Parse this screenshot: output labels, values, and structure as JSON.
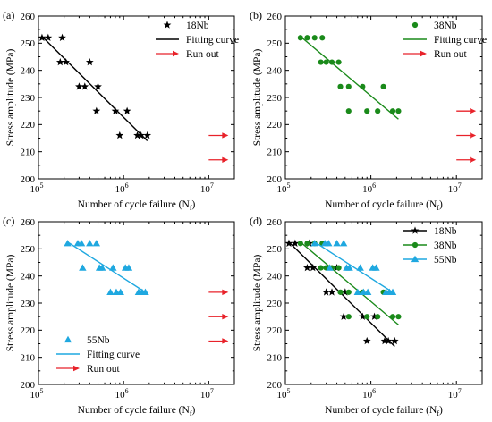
{
  "colors": {
    "18Nb": "#000000",
    "38Nb": "#1a8a1a",
    "55Nb": "#1fa8e0",
    "runout": "#e8222a"
  },
  "chart_data": [
    {
      "panel": "(a)",
      "type": "scatter",
      "xscale": "log",
      "xlim": [
        100000,
        20000000
      ],
      "ylim": [
        200,
        260
      ],
      "xlabel": "Number of cycle failure (N_f)",
      "ylabel": "Stress amplitude (MPa)",
      "yticks": [
        200,
        210,
        220,
        230,
        240,
        250,
        260
      ],
      "legend_position": "top-right",
      "legend": [
        "18Nb",
        "Fitting curve",
        "Run out"
      ],
      "series": [
        {
          "name": "18Nb",
          "marker": "star",
          "color": "#000000",
          "points": [
            [
              110000,
              252
            ],
            [
              130000,
              252
            ],
            [
              190000,
              252
            ],
            [
              180000,
              243
            ],
            [
              210000,
              243
            ],
            [
              400000,
              243
            ],
            [
              300000,
              234
            ],
            [
              350000,
              234
            ],
            [
              500000,
              234
            ],
            [
              480000,
              225
            ],
            [
              800000,
              225
            ],
            [
              1100000,
              225
            ],
            [
              900000,
              216
            ],
            [
              1450000,
              216
            ],
            [
              1600000,
              216
            ],
            [
              1900000,
              216
            ]
          ],
          "fit": [
            [
              110000,
              252.5
            ],
            [
              1900000,
              214
            ]
          ]
        }
      ],
      "runout": [
        {
          "x": 10000000,
          "y": 216
        },
        {
          "x": 10000000,
          "y": 207
        }
      ]
    },
    {
      "panel": "(b)",
      "type": "scatter",
      "xscale": "log",
      "xlim": [
        100000,
        20000000
      ],
      "ylim": [
        200,
        260
      ],
      "xlabel": "Number of cycle failure (N_f)",
      "ylabel": "Stress amplitude (MPa)",
      "yticks": [
        200,
        210,
        220,
        230,
        240,
        250,
        260
      ],
      "legend_position": "top-right",
      "legend": [
        "38Nb",
        "Fitting curve",
        "Run out"
      ],
      "series": [
        {
          "name": "38Nb",
          "marker": "circle",
          "color": "#1a8a1a",
          "points": [
            [
              150000,
              252
            ],
            [
              180000,
              252
            ],
            [
              220000,
              252
            ],
            [
              270000,
              252
            ],
            [
              260000,
              243
            ],
            [
              300000,
              243
            ],
            [
              350000,
              243
            ],
            [
              420000,
              243
            ],
            [
              440000,
              234
            ],
            [
              550000,
              234
            ],
            [
              800000,
              234
            ],
            [
              1400000,
              234
            ],
            [
              550000,
              225
            ],
            [
              900000,
              225
            ],
            [
              1200000,
              225
            ],
            [
              1800000,
              225
            ],
            [
              2100000,
              225
            ]
          ],
          "fit": [
            [
              150000,
              252.5
            ],
            [
              2100000,
              222
            ]
          ]
        }
      ],
      "runout": [
        {
          "x": 10000000,
          "y": 225
        },
        {
          "x": 10000000,
          "y": 216
        },
        {
          "x": 10000000,
          "y": 207
        }
      ]
    },
    {
      "panel": "(c)",
      "type": "scatter",
      "xscale": "log",
      "xlim": [
        100000,
        20000000
      ],
      "ylim": [
        200,
        260
      ],
      "xlabel": "Number of cycle failure (N_f)",
      "ylabel": "Stress amplitude (MPa)",
      "yticks": [
        200,
        210,
        220,
        230,
        240,
        250,
        260
      ],
      "legend_position": "bottom-left",
      "legend": [
        "55Nb",
        "Fitting curve",
        "Run out"
      ],
      "series": [
        {
          "name": "55Nb",
          "marker": "triangle",
          "color": "#1fa8e0",
          "points": [
            [
              220000,
              252
            ],
            [
              290000,
              252
            ],
            [
              320000,
              252
            ],
            [
              400000,
              252
            ],
            [
              480000,
              252
            ],
            [
              330000,
              243
            ],
            [
              520000,
              243
            ],
            [
              560000,
              243
            ],
            [
              750000,
              243
            ],
            [
              1050000,
              243
            ],
            [
              1150000,
              243
            ],
            [
              700000,
              234
            ],
            [
              820000,
              234
            ],
            [
              920000,
              234
            ],
            [
              1500000,
              234
            ],
            [
              1650000,
              234
            ],
            [
              1800000,
              234
            ]
          ],
          "fit": [
            [
              220000,
              252.5
            ],
            [
              1800000,
              234
            ]
          ]
        }
      ],
      "runout": [
        {
          "x": 10000000,
          "y": 234
        },
        {
          "x": 10000000,
          "y": 225
        },
        {
          "x": 10000000,
          "y": 216
        }
      ]
    },
    {
      "panel": "(d)",
      "type": "scatter",
      "xscale": "log",
      "xlim": [
        100000,
        20000000
      ],
      "ylim": [
        200,
        260
      ],
      "xlabel": "Number of cycle failure (N_f)",
      "ylabel": "Stress amplitude (MPa)",
      "yticks": [
        200,
        210,
        220,
        230,
        240,
        250,
        260
      ],
      "legend_position": "top-right",
      "legend": [
        "18Nb",
        "38Nb",
        "55Nb"
      ],
      "series": [
        {
          "name": "18Nb",
          "marker": "star",
          "color": "#000000",
          "points": [
            [
              110000,
              252
            ],
            [
              130000,
              252
            ],
            [
              190000,
              252
            ],
            [
              180000,
              243
            ],
            [
              210000,
              243
            ],
            [
              400000,
              243
            ],
            [
              300000,
              234
            ],
            [
              350000,
              234
            ],
            [
              500000,
              234
            ],
            [
              480000,
              225
            ],
            [
              800000,
              225
            ],
            [
              1100000,
              225
            ],
            [
              900000,
              216
            ],
            [
              1450000,
              216
            ],
            [
              1600000,
              216
            ],
            [
              1900000,
              216
            ]
          ],
          "fit": [
            [
              110000,
              252.5
            ],
            [
              1900000,
              214
            ]
          ]
        },
        {
          "name": "38Nb",
          "marker": "circle",
          "color": "#1a8a1a",
          "points": [
            [
              150000,
              252
            ],
            [
              180000,
              252
            ],
            [
              220000,
              252
            ],
            [
              270000,
              252
            ],
            [
              260000,
              243
            ],
            [
              300000,
              243
            ],
            [
              350000,
              243
            ],
            [
              420000,
              243
            ],
            [
              440000,
              234
            ],
            [
              550000,
              234
            ],
            [
              800000,
              234
            ],
            [
              1400000,
              234
            ],
            [
              550000,
              225
            ],
            [
              900000,
              225
            ],
            [
              1200000,
              225
            ],
            [
              1800000,
              225
            ],
            [
              2100000,
              225
            ]
          ],
          "fit": [
            [
              150000,
              252.5
            ],
            [
              2100000,
              222
            ]
          ]
        },
        {
          "name": "55Nb",
          "marker": "triangle",
          "color": "#1fa8e0",
          "points": [
            [
              220000,
              252
            ],
            [
              290000,
              252
            ],
            [
              320000,
              252
            ],
            [
              400000,
              252
            ],
            [
              480000,
              252
            ],
            [
              330000,
              243
            ],
            [
              520000,
              243
            ],
            [
              560000,
              243
            ],
            [
              750000,
              243
            ],
            [
              1050000,
              243
            ],
            [
              1150000,
              243
            ],
            [
              700000,
              234
            ],
            [
              820000,
              234
            ],
            [
              920000,
              234
            ],
            [
              1500000,
              234
            ],
            [
              1650000,
              234
            ],
            [
              1800000,
              234
            ]
          ],
          "fit": [
            [
              220000,
              252.5
            ],
            [
              1800000,
              234
            ]
          ]
        }
      ],
      "runout": []
    }
  ]
}
